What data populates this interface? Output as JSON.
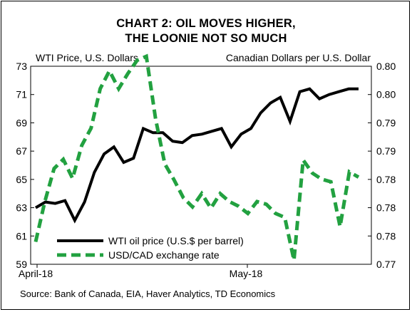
{
  "chart_data": {
    "type": "line",
    "title": "CHART 2: OIL MOVES HIGHER,",
    "subtitle": "THE LOONIE NOT SO MUCH",
    "left_axis_label": "WTI Price, U.S. Dollars",
    "right_axis_label": "Canadian Dollars per U.S. Dollar",
    "x_tick_labels": [
      "April-18",
      "May-18"
    ],
    "y_left": {
      "range": [
        59,
        73
      ],
      "ticks": [
        "73",
        "71",
        "69",
        "67",
        "65",
        "63",
        "61",
        "59"
      ]
    },
    "y_right": {
      "range": [
        0.77,
        0.8
      ],
      "ticks": [
        "0.80",
        "0.80",
        "0.79",
        "0.79",
        "0.78",
        "0.78",
        "0.78",
        "0.77"
      ]
    },
    "grid": false,
    "legend_placement": "bottom-left",
    "series": [
      {
        "name": "WTI oil price (U.S.$ per barrel)",
        "axis": "left",
        "color": "#000000",
        "style": "solid",
        "values": [
          63.0,
          63.4,
          63.3,
          63.5,
          62.1,
          63.4,
          65.5,
          66.8,
          67.3,
          66.2,
          66.5,
          68.6,
          68.3,
          68.3,
          67.7,
          67.6,
          68.1,
          68.2,
          68.4,
          68.6,
          67.3,
          68.2,
          68.6,
          69.7,
          70.4,
          70.8,
          69.1,
          71.2,
          71.4,
          70.7,
          71.0,
          71.2,
          71.4,
          71.4
        ]
      },
      {
        "name": "USD/CAD exchange rate",
        "axis": "right",
        "color": "#22a140",
        "style": "dashed",
        "values": [
          0.7734,
          0.7795,
          0.7845,
          0.7859,
          0.783,
          0.788,
          0.7906,
          0.7966,
          0.7993,
          0.7966,
          0.7989,
          0.8009,
          0.8015,
          0.792,
          0.7852,
          0.7828,
          0.7801,
          0.7787,
          0.7807,
          0.7785,
          0.7807,
          0.7795,
          0.7788,
          0.7777,
          0.7795,
          0.7791,
          0.7777,
          0.7771,
          0.7706,
          0.7858,
          0.7838,
          0.7829,
          0.7825,
          0.7757,
          0.784,
          0.7832
        ]
      }
    ]
  }
}
